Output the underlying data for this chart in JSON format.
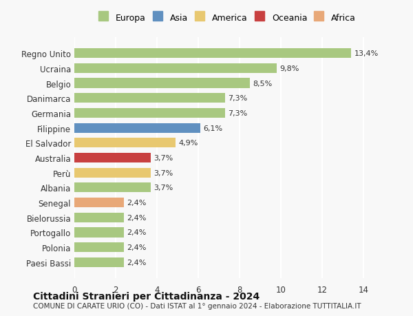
{
  "categories": [
    "Paesi Bassi",
    "Polonia",
    "Portogallo",
    "Bielorussia",
    "Senegal",
    "Albania",
    "Perù",
    "Australia",
    "El Salvador",
    "Filippine",
    "Germania",
    "Danimarca",
    "Belgio",
    "Ucraina",
    "Regno Unito"
  ],
  "values": [
    2.4,
    2.4,
    2.4,
    2.4,
    2.4,
    3.7,
    3.7,
    3.7,
    4.9,
    6.1,
    7.3,
    7.3,
    8.5,
    9.8,
    13.4
  ],
  "bar_colors": [
    "#a8c880",
    "#a8c880",
    "#a8c880",
    "#a8c880",
    "#e8a878",
    "#a8c880",
    "#e8c870",
    "#c84040",
    "#e8c870",
    "#6090c0",
    "#a8c880",
    "#a8c880",
    "#a8c880",
    "#a8c880",
    "#a8c880"
  ],
  "labels": [
    "2,4%",
    "2,4%",
    "2,4%",
    "2,4%",
    "2,4%",
    "3,7%",
    "3,7%",
    "3,7%",
    "4,9%",
    "6,1%",
    "7,3%",
    "7,3%",
    "8,5%",
    "9,8%",
    "13,4%"
  ],
  "xlim": [
    0,
    14.8
  ],
  "xticks": [
    0,
    2,
    4,
    6,
    8,
    10,
    12,
    14
  ],
  "legend": {
    "Europa": "#a8c880",
    "Asia": "#6090c0",
    "America": "#e8c870",
    "Oceania": "#c84040",
    "Africa": "#e8a878"
  },
  "title": "Cittadini Stranieri per Cittadinanza - 2024",
  "subtitle": "COMUNE DI CARATE URIO (CO) - Dati ISTAT al 1° gennaio 2024 - Elaborazione TUTTITALIA.IT",
  "background_color": "#f8f8f8",
  "grid_color": "#ffffff",
  "bar_height": 0.65
}
